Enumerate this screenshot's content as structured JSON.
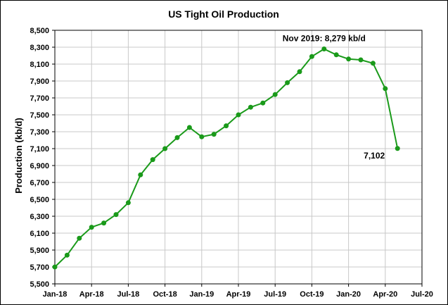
{
  "chart_data": {
    "type": "line",
    "title": "US Tight Oil Production",
    "ylabel": "Production (kb/d)",
    "xlabel": "",
    "ylim": [
      5500,
      8500
    ],
    "yticks": [
      5500,
      5700,
      5900,
      6100,
      6300,
      6500,
      6700,
      6900,
      7100,
      7300,
      7500,
      7700,
      7900,
      8100,
      8300,
      8500
    ],
    "ytick_labels": [
      "5,500",
      "5,700",
      "5,900",
      "6,100",
      "6,300",
      "6,500",
      "6,700",
      "6,900",
      "7,100",
      "7,300",
      "7,500",
      "7,700",
      "7,900",
      "8,100",
      "8,300",
      "8,500"
    ],
    "xticks": [
      "Jan-18",
      "Apr-18",
      "Jul-18",
      "Oct-18",
      "Jan-19",
      "Apr-19",
      "Jul-19",
      "Oct-19",
      "Jan-20",
      "Apr-20",
      "Jul-20"
    ],
    "grid": true,
    "line_color": "#1a9a1a",
    "series": [
      {
        "x": [
          "2018-01",
          "2018-02",
          "2018-03",
          "2018-04",
          "2018-05",
          "2018-06",
          "2018-07",
          "2018-08",
          "2018-09",
          "2018-10",
          "2018-11",
          "2018-12",
          "2019-01",
          "2019-02",
          "2019-03",
          "2019-04",
          "2019-05",
          "2019-06",
          "2019-07",
          "2019-08",
          "2019-09",
          "2019-10",
          "2019-11",
          "2019-12",
          "2020-01",
          "2020-02",
          "2020-03",
          "2020-04",
          "2020-05"
        ],
        "values": [
          5700,
          5840,
          6040,
          6170,
          6220,
          6320,
          6460,
          6790,
          6970,
          7100,
          7230,
          7350,
          7240,
          7270,
          7370,
          7500,
          7590,
          7640,
          7740,
          7880,
          8010,
          8190,
          8279,
          8210,
          8160,
          8150,
          8110,
          7810,
          7102
        ]
      }
    ],
    "annotations": [
      {
        "text": "Nov 2019: 8,279 kb/d",
        "x": "2019-11",
        "y": 8279
      },
      {
        "text": "7,102",
        "x": "2020-05",
        "y": 7102
      }
    ]
  }
}
